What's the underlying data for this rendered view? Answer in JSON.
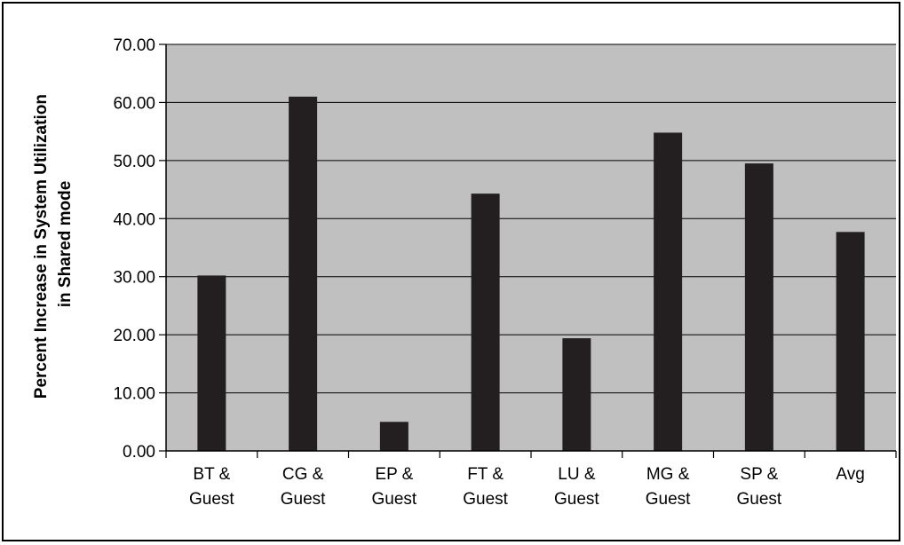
{
  "chart_data": {
    "type": "bar",
    "title": "",
    "xlabel": "",
    "ylabel_lines": [
      "Percent Increase in System Utilization",
      "in Shared mode"
    ],
    "categories": [
      [
        "BT &",
        "Guest"
      ],
      [
        "CG &",
        "Guest"
      ],
      [
        "EP &",
        "Guest"
      ],
      [
        "FT &",
        "Guest"
      ],
      [
        "LU &",
        "Guest"
      ],
      [
        "MG &",
        "Guest"
      ],
      [
        "SP &",
        "Guest"
      ],
      [
        "Avg"
      ]
    ],
    "values": [
      30.2,
      61.0,
      5.0,
      44.3,
      19.4,
      54.8,
      49.5,
      37.7
    ],
    "ylim": [
      0,
      70
    ],
    "yticks": [
      "0.00",
      "10.00",
      "20.00",
      "30.00",
      "40.00",
      "50.00",
      "60.00",
      "70.00"
    ],
    "grid": true,
    "legend": "none",
    "colors": {
      "plot_background": "#c0c0c0",
      "bar": "#231f20",
      "gridline": "#000000"
    }
  }
}
